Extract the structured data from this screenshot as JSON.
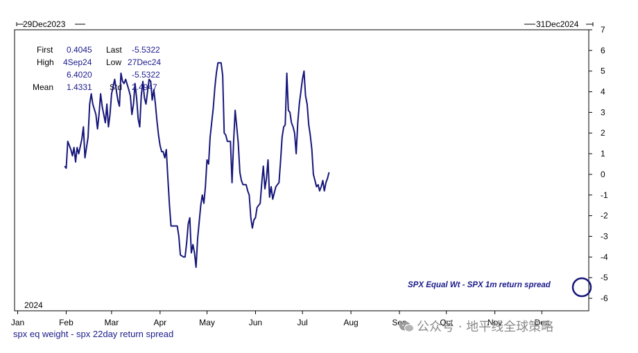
{
  "header": {
    "start_date": "29Dec2023",
    "end_date": "31Dec2024"
  },
  "stats": {
    "first_label": "First",
    "first_value": "0.4045",
    "last_label": "Last",
    "last_value": "-5.5322",
    "high_label": "High",
    "high_date": "4Sep24",
    "high_value": "6.4020",
    "low_label": "Low",
    "low_date": "27Dec24",
    "low_value": "-5.5322",
    "mean_label": "Mean",
    "mean_value": "1.4331",
    "std_label": "Std",
    "std_value": "2.4947"
  },
  "chart_data": {
    "type": "line",
    "title": "",
    "year_label": "2024",
    "xlabel": "",
    "ylabel": "",
    "ylim": [
      -6,
      7
    ],
    "yticks": [
      7,
      6,
      5,
      4,
      3,
      2,
      1,
      0,
      -1,
      -2,
      -3,
      -4,
      -5,
      -6
    ],
    "x_range_days": [
      -2,
      365
    ],
    "months": [
      {
        "label": "Jan",
        "day": 0
      },
      {
        "label": "Feb",
        "day": 31
      },
      {
        "label": "Mar",
        "day": 60
      },
      {
        "label": "Apr",
        "day": 91
      },
      {
        "label": "May",
        "day": 121
      },
      {
        "label": "Jun",
        "day": 152
      },
      {
        "label": "Jul",
        "day": 182
      },
      {
        "label": "Aug",
        "day": 213
      },
      {
        "label": "Sep",
        "day": 244
      },
      {
        "label": "Oct",
        "day": 274
      },
      {
        "label": "Nov",
        "day": 305
      },
      {
        "label": "Dec",
        "day": 335
      }
    ],
    "annotation": "SPX Equal Wt - SPX 1m return spread",
    "series": [
      {
        "name": "spx eq weight - spx 22day return spread",
        "points": [
          [
            30,
            0.4
          ],
          [
            31,
            0.3
          ],
          [
            32,
            1.6
          ],
          [
            34,
            1.2
          ],
          [
            35,
            0.9
          ],
          [
            36,
            1.3
          ],
          [
            37,
            0.6
          ],
          [
            38,
            1.3
          ],
          [
            39,
            1.0
          ],
          [
            41,
            1.7
          ],
          [
            42,
            2.3
          ],
          [
            43,
            0.8
          ],
          [
            45,
            1.8
          ],
          [
            46,
            3.4
          ],
          [
            47,
            3.9
          ],
          [
            48,
            3.4
          ],
          [
            50,
            2.9
          ],
          [
            51,
            2.2
          ],
          [
            52,
            2.9
          ],
          [
            53,
            3.9
          ],
          [
            54,
            3.3
          ],
          [
            56,
            2.5
          ],
          [
            57,
            3.4
          ],
          [
            58,
            2.3
          ],
          [
            59,
            2.9
          ],
          [
            60,
            3.9
          ],
          [
            62,
            4.6
          ],
          [
            63,
            4.1
          ],
          [
            64,
            3.6
          ],
          [
            65,
            3.3
          ],
          [
            66,
            4.9
          ],
          [
            67,
            4.5
          ],
          [
            68,
            4.4
          ],
          [
            69,
            4.6
          ],
          [
            71,
            4.1
          ],
          [
            72,
            3.8
          ],
          [
            73,
            2.9
          ],
          [
            74,
            3.4
          ],
          [
            75,
            4.4
          ],
          [
            76,
            3.7
          ],
          [
            77,
            2.7
          ],
          [
            78,
            2.3
          ],
          [
            79,
            3.8
          ],
          [
            80,
            4.5
          ],
          [
            81,
            3.7
          ],
          [
            82,
            3.4
          ],
          [
            84,
            4.6
          ],
          [
            85,
            4.5
          ],
          [
            86,
            3.6
          ],
          [
            87,
            4.1
          ],
          [
            88,
            3.4
          ],
          [
            89,
            2.6
          ],
          [
            90,
            1.9
          ],
          [
            91,
            1.4
          ],
          [
            92,
            1.1
          ],
          [
            93,
            1.1
          ],
          [
            94,
            0.8
          ],
          [
            95,
            1.2
          ],
          [
            96,
            -0.2
          ],
          [
            97,
            -1.5
          ],
          [
            98,
            -2.5
          ],
          [
            100,
            -2.5
          ],
          [
            102,
            -2.5
          ],
          [
            103,
            -3.0
          ],
          [
            104,
            -3.9
          ],
          [
            106,
            -4.0
          ],
          [
            107,
            -4.0
          ],
          [
            108,
            -3.3
          ],
          [
            109,
            -2.4
          ],
          [
            110,
            -2.1
          ],
          [
            111,
            -3.8
          ],
          [
            112,
            -3.4
          ],
          [
            113,
            -3.8
          ],
          [
            114,
            -4.5
          ],
          [
            115,
            -3.1
          ],
          [
            117,
            -1.5
          ],
          [
            118,
            -1.0
          ],
          [
            119,
            -1.4
          ],
          [
            120,
            -0.6
          ],
          [
            121,
            0.7
          ],
          [
            122,
            0.5
          ],
          [
            123,
            1.8
          ],
          [
            125,
            3.2
          ],
          [
            126,
            4.2
          ],
          [
            127,
            4.9
          ],
          [
            128,
            5.4
          ],
          [
            130,
            5.4
          ],
          [
            131,
            4.8
          ],
          [
            132,
            2.0
          ],
          [
            133,
            1.9
          ],
          [
            134,
            1.6
          ],
          [
            135,
            1.6
          ],
          [
            136,
            1.6
          ],
          [
            137,
            -0.4
          ],
          [
            138,
            1.6
          ],
          [
            139,
            3.1
          ],
          [
            140,
            2.3
          ],
          [
            141,
            1.5
          ],
          [
            142,
            0.1
          ],
          [
            143,
            -0.3
          ],
          [
            144,
            -0.5
          ],
          [
            145,
            -0.5
          ],
          [
            146,
            -0.5
          ],
          [
            147,
            -0.8
          ],
          [
            148,
            -1.0
          ],
          [
            149,
            -2.1
          ],
          [
            150,
            -2.6
          ],
          [
            151,
            -2.2
          ],
          [
            152,
            -2.1
          ],
          [
            153,
            -1.6
          ],
          [
            154,
            -1.5
          ],
          [
            155,
            -1.4
          ],
          [
            156,
            -0.4
          ],
          [
            157,
            0.4
          ],
          [
            158,
            -0.7
          ],
          [
            159,
            -0.2
          ],
          [
            160,
            0.7
          ],
          [
            161,
            -1.1
          ],
          [
            162,
            -0.6
          ],
          [
            163,
            -1.2
          ],
          [
            164,
            -0.9
          ],
          [
            165,
            -0.6
          ],
          [
            166,
            -0.5
          ],
          [
            167,
            -0.4
          ],
          [
            168,
            0.6
          ],
          [
            169,
            1.8
          ],
          [
            170,
            2.3
          ],
          [
            171,
            2.4
          ],
          [
            172,
            4.9
          ],
          [
            173,
            3.1
          ],
          [
            174,
            3.0
          ],
          [
            175,
            2.5
          ],
          [
            176,
            2.3
          ],
          [
            177,
            2.0
          ],
          [
            178,
            1.0
          ],
          [
            179,
            2.5
          ],
          [
            180,
            3.4
          ],
          [
            182,
            4.6
          ],
          [
            183,
            5.0
          ],
          [
            184,
            3.8
          ],
          [
            185,
            3.4
          ],
          [
            186,
            2.4
          ],
          [
            187,
            1.9
          ],
          [
            188,
            1.2
          ],
          [
            189,
            0.0
          ],
          [
            190,
            -0.3
          ],
          [
            191,
            -0.6
          ],
          [
            192,
            -0.5
          ],
          [
            193,
            -0.8
          ],
          [
            194,
            -0.6
          ],
          [
            195,
            -0.3
          ],
          [
            196,
            -0.8
          ],
          [
            197,
            -0.4
          ],
          [
            198,
            -0.2
          ],
          [
            199,
            0.1
          ]
        ]
      }
    ]
  },
  "footer": {
    "caption": "spx eq weight - spx 22day return spread"
  },
  "watermark": {
    "text": "公众号 · 地平线全球策略"
  },
  "colors": {
    "line": "#16167a",
    "text_blue": "#1a1a8c",
    "axis": "#000000"
  }
}
